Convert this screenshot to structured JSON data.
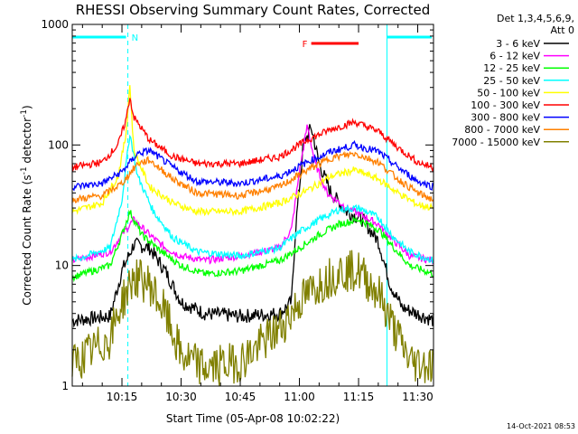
{
  "chart_data": {
    "type": "line",
    "title": "RHESSI Observing Summary Count Rates, Corrected",
    "xlabel": "Start Time (05-Apr-08 10:02:22)",
    "ylabel": "Corrected Count Rate (s",
    "ylabel_sup1": "-1",
    "ylabel_mid": " detector",
    "ylabel_sup2": "-1",
    "ylabel_end": ")",
    "y_scale": "log",
    "ylim": [
      1,
      1000
    ],
    "xlim_minutes": [
      2.4,
      94.0
    ],
    "x_ticks": [
      {
        "label": "10:15",
        "minute": 15
      },
      {
        "label": "10:30",
        "minute": 30
      },
      {
        "label": "10:45",
        "minute": 45
      },
      {
        "label": "11:00",
        "minute": 60
      },
      {
        "label": "11:15",
        "minute": 75
      },
      {
        "label": "11:30",
        "minute": 90
      }
    ],
    "y_ticks": [
      {
        "label": "1",
        "value": 1
      },
      {
        "label": "10",
        "value": 10
      },
      {
        "label": "100",
        "value": 100
      },
      {
        "label": "1000",
        "value": 1000
      }
    ],
    "legend": {
      "header1": "Det 1,3,4,5,6,9,",
      "header2": "Att 0",
      "placement": "right"
    },
    "series": [
      {
        "name": "3 - 6 keV",
        "color": "#000000",
        "points": [
          [
            2.4,
            3.5
          ],
          [
            12,
            3.8
          ],
          [
            15,
            9
          ],
          [
            18,
            15
          ],
          [
            22,
            14
          ],
          [
            26,
            9
          ],
          [
            30,
            5
          ],
          [
            36,
            4
          ],
          [
            45,
            3.8
          ],
          [
            55,
            4
          ],
          [
            58,
            5
          ],
          [
            59,
            20
          ],
          [
            61,
            100
          ],
          [
            63,
            140
          ],
          [
            65,
            70
          ],
          [
            68,
            40
          ],
          [
            72,
            28
          ],
          [
            76,
            24
          ],
          [
            80,
            16
          ],
          [
            83,
            7
          ],
          [
            86,
            4.5
          ],
          [
            94,
            3.5
          ]
        ]
      },
      {
        "name": "6 - 12 keV",
        "color": "#ff00ff",
        "points": [
          [
            2.4,
            11
          ],
          [
            12,
            13
          ],
          [
            15,
            18
          ],
          [
            18,
            24
          ],
          [
            22,
            18
          ],
          [
            26,
            14
          ],
          [
            30,
            12
          ],
          [
            36,
            11
          ],
          [
            45,
            12
          ],
          [
            55,
            14
          ],
          [
            58,
            20
          ],
          [
            60,
            60
          ],
          [
            62,
            145
          ],
          [
            64,
            70
          ],
          [
            67,
            40
          ],
          [
            72,
            30
          ],
          [
            76,
            26
          ],
          [
            80,
            22
          ],
          [
            84,
            16
          ],
          [
            88,
            12
          ],
          [
            94,
            11
          ]
        ]
      },
      {
        "name": "12 - 25 keV",
        "color": "#00ff00",
        "points": [
          [
            2.4,
            8
          ],
          [
            12,
            10
          ],
          [
            15,
            18
          ],
          [
            17,
            28
          ],
          [
            20,
            18
          ],
          [
            25,
            13
          ],
          [
            30,
            10
          ],
          [
            36,
            8.5
          ],
          [
            45,
            9
          ],
          [
            55,
            11
          ],
          [
            60,
            14
          ],
          [
            65,
            18
          ],
          [
            70,
            22
          ],
          [
            75,
            24
          ],
          [
            80,
            20
          ],
          [
            84,
            14
          ],
          [
            88,
            10
          ],
          [
            94,
            8.5
          ]
        ]
      },
      {
        "name": "25 - 50 keV",
        "color": "#00ffff",
        "points": [
          [
            2.4,
            11
          ],
          [
            12,
            14
          ],
          [
            15,
            35
          ],
          [
            17,
            125
          ],
          [
            19,
            55
          ],
          [
            23,
            28
          ],
          [
            28,
            17
          ],
          [
            34,
            13
          ],
          [
            45,
            12
          ],
          [
            55,
            14
          ],
          [
            60,
            19
          ],
          [
            65,
            24
          ],
          [
            70,
            29
          ],
          [
            75,
            30
          ],
          [
            80,
            25
          ],
          [
            84,
            17
          ],
          [
            88,
            13
          ],
          [
            94,
            11
          ]
        ]
      },
      {
        "name": "50 - 100 keV",
        "color": "#ffff00",
        "points": [
          [
            2.4,
            28
          ],
          [
            10,
            33
          ],
          [
            14,
            55
          ],
          [
            16,
            120
          ],
          [
            17,
            320
          ],
          [
            18,
            90
          ],
          [
            22,
            45
          ],
          [
            28,
            33
          ],
          [
            34,
            28
          ],
          [
            45,
            28
          ],
          [
            55,
            33
          ],
          [
            62,
            42
          ],
          [
            68,
            55
          ],
          [
            74,
            62
          ],
          [
            80,
            52
          ],
          [
            85,
            40
          ],
          [
            90,
            32
          ],
          [
            94,
            30
          ]
        ]
      },
      {
        "name": "100 - 300 keV",
        "color": "#ff0000",
        "points": [
          [
            2.4,
            65
          ],
          [
            10,
            72
          ],
          [
            14,
            100
          ],
          [
            16,
            160
          ],
          [
            17,
            250
          ],
          [
            18,
            170
          ],
          [
            22,
            110
          ],
          [
            28,
            80
          ],
          [
            34,
            70
          ],
          [
            45,
            70
          ],
          [
            55,
            80
          ],
          [
            62,
            110
          ],
          [
            68,
            135
          ],
          [
            74,
            155
          ],
          [
            80,
            130
          ],
          [
            85,
            95
          ],
          [
            90,
            72
          ],
          [
            94,
            65
          ]
        ]
      },
      {
        "name": "300 - 800 keV",
        "color": "#0000ff",
        "points": [
          [
            2.4,
            45
          ],
          [
            10,
            48
          ],
          [
            15,
            60
          ],
          [
            19,
            85
          ],
          [
            22,
            90
          ],
          [
            28,
            65
          ],
          [
            34,
            50
          ],
          [
            45,
            48
          ],
          [
            55,
            55
          ],
          [
            62,
            72
          ],
          [
            68,
            88
          ],
          [
            74,
            100
          ],
          [
            80,
            88
          ],
          [
            85,
            65
          ],
          [
            90,
            50
          ],
          [
            94,
            45
          ]
        ]
      },
      {
        "name": "800 - 7000 keV",
        "color": "#ff8000",
        "points": [
          [
            2.4,
            35
          ],
          [
            10,
            38
          ],
          [
            15,
            48
          ],
          [
            19,
            70
          ],
          [
            22,
            75
          ],
          [
            28,
            52
          ],
          [
            34,
            40
          ],
          [
            45,
            38
          ],
          [
            55,
            45
          ],
          [
            62,
            62
          ],
          [
            68,
            78
          ],
          [
            74,
            85
          ],
          [
            80,
            72
          ],
          [
            85,
            52
          ],
          [
            90,
            40
          ],
          [
            94,
            35
          ]
        ]
      },
      {
        "name": "7000 - 15000 keV",
        "color": "#808000",
        "points": [
          [
            2.4,
            1.5
          ],
          [
            12,
            2.5
          ],
          [
            15,
            5
          ],
          [
            18,
            8
          ],
          [
            22,
            7
          ],
          [
            26,
            4
          ],
          [
            30,
            1.8
          ],
          [
            36,
            1.4
          ],
          [
            45,
            1.6
          ],
          [
            55,
            3
          ],
          [
            60,
            5
          ],
          [
            65,
            7
          ],
          [
            70,
            9
          ],
          [
            75,
            9
          ],
          [
            80,
            6
          ],
          [
            84,
            3
          ],
          [
            88,
            1.6
          ],
          [
            94,
            1.5
          ]
        ]
      }
    ],
    "annotations": {
      "night_label": "N",
      "flare_label": "F",
      "night_bar_color": "#00ffff",
      "flare_bar_color": "#ff0000",
      "night_intervals_minutes": [
        [
          2.4,
          16.5
        ],
        [
          82.2,
          94.0
        ]
      ],
      "flare_interval_minutes": [
        63,
        75
      ],
      "saa_marker_minutes": [
        16.5,
        82.2,
        94.0
      ]
    },
    "grid": false
  },
  "timestamp": "14-Oct-2021 08:53"
}
